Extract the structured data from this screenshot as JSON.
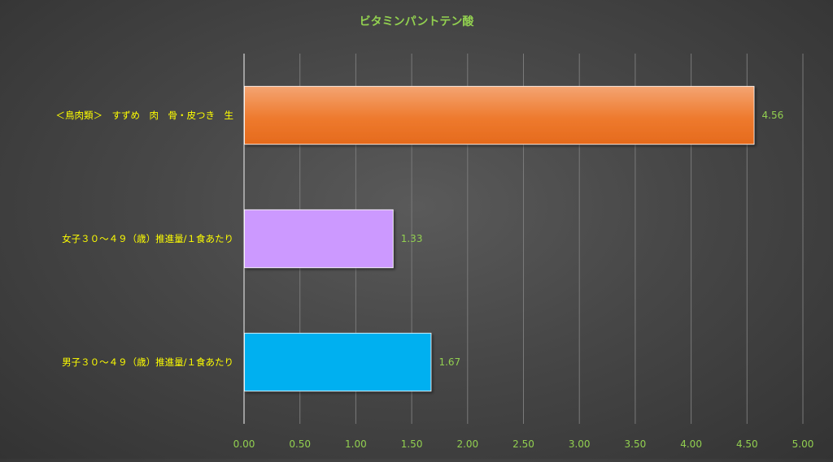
{
  "chart_data": {
    "type": "bar",
    "orientation": "horizontal",
    "title": "ビタミンパントテン酸",
    "categories": [
      "＜鳥肉類＞　すずめ　肉　骨・皮つき　生",
      "女子３０～４９（歳）推進量/１食あたり",
      "男子３０～４９（歳）推進量/１食あたり"
    ],
    "values": [
      4.56,
      1.33,
      1.67
    ],
    "data_labels": [
      "4.56",
      "1.33",
      "1.67"
    ],
    "bar_colors": [
      "#ED7D31",
      "#CC99FF",
      "#00B0F0"
    ],
    "xlim": [
      0,
      5
    ],
    "xticks": [
      "0.00",
      "0.50",
      "1.00",
      "1.50",
      "2.00",
      "2.50",
      "3.00",
      "3.50",
      "4.00",
      "4.50",
      "5.00"
    ],
    "grid": true,
    "legend": "none",
    "xlabel": "",
    "ylabel": ""
  },
  "colors": {
    "title": "#92D050",
    "category_label": "#FFFF00",
    "tick_label": "#92D050",
    "data_label": "#92D050"
  }
}
